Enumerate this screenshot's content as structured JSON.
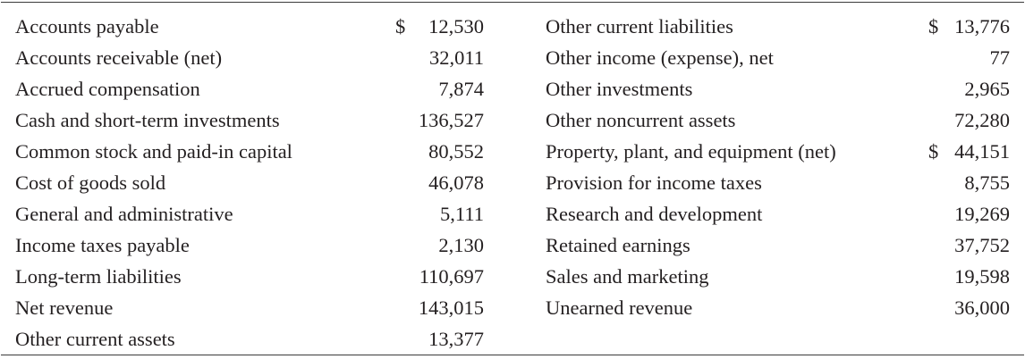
{
  "table": {
    "left": [
      {
        "label": "Accounts payable",
        "currency": "$",
        "value": "12,530"
      },
      {
        "label": "Accounts receivable (net)",
        "currency": "",
        "value": "32,011"
      },
      {
        "label": "Accrued compensation",
        "currency": "",
        "value": "7,874"
      },
      {
        "label": "Cash and short-term investments",
        "currency": "",
        "value": "136,527"
      },
      {
        "label": "Common stock and paid-in capital",
        "currency": "",
        "value": "80,552"
      },
      {
        "label": "Cost of goods sold",
        "currency": "",
        "value": "46,078"
      },
      {
        "label": "General and administrative",
        "currency": "",
        "value": "5,111"
      },
      {
        "label": "Income taxes payable",
        "currency": "",
        "value": "2,130"
      },
      {
        "label": "Long-term liabilities",
        "currency": "",
        "value": "110,697"
      },
      {
        "label": "Net revenue",
        "currency": "",
        "value": "143,015"
      },
      {
        "label": "Other current assets",
        "currency": "",
        "value": "13,377"
      }
    ],
    "right": [
      {
        "label": "Other current liabilities",
        "currency": "$",
        "value": "13,776"
      },
      {
        "label": "Other income (expense), net",
        "currency": "",
        "value": "77"
      },
      {
        "label": "Other investments",
        "currency": "",
        "value": "2,965"
      },
      {
        "label": "Other noncurrent assets",
        "currency": "",
        "value": "72,280"
      },
      {
        "label": "Property, plant, and equipment (net)",
        "currency": "$",
        "value": "44,151"
      },
      {
        "label": "Provision for income taxes",
        "currency": "",
        "value": "8,755"
      },
      {
        "label": "Research and development",
        "currency": "",
        "value": "19,269"
      },
      {
        "label": "Retained earnings",
        "currency": "",
        "value": "37,752"
      },
      {
        "label": "Sales and marketing",
        "currency": "",
        "value": "19,598"
      },
      {
        "label": "Unearned revenue",
        "currency": "",
        "value": "36,000"
      }
    ]
  }
}
